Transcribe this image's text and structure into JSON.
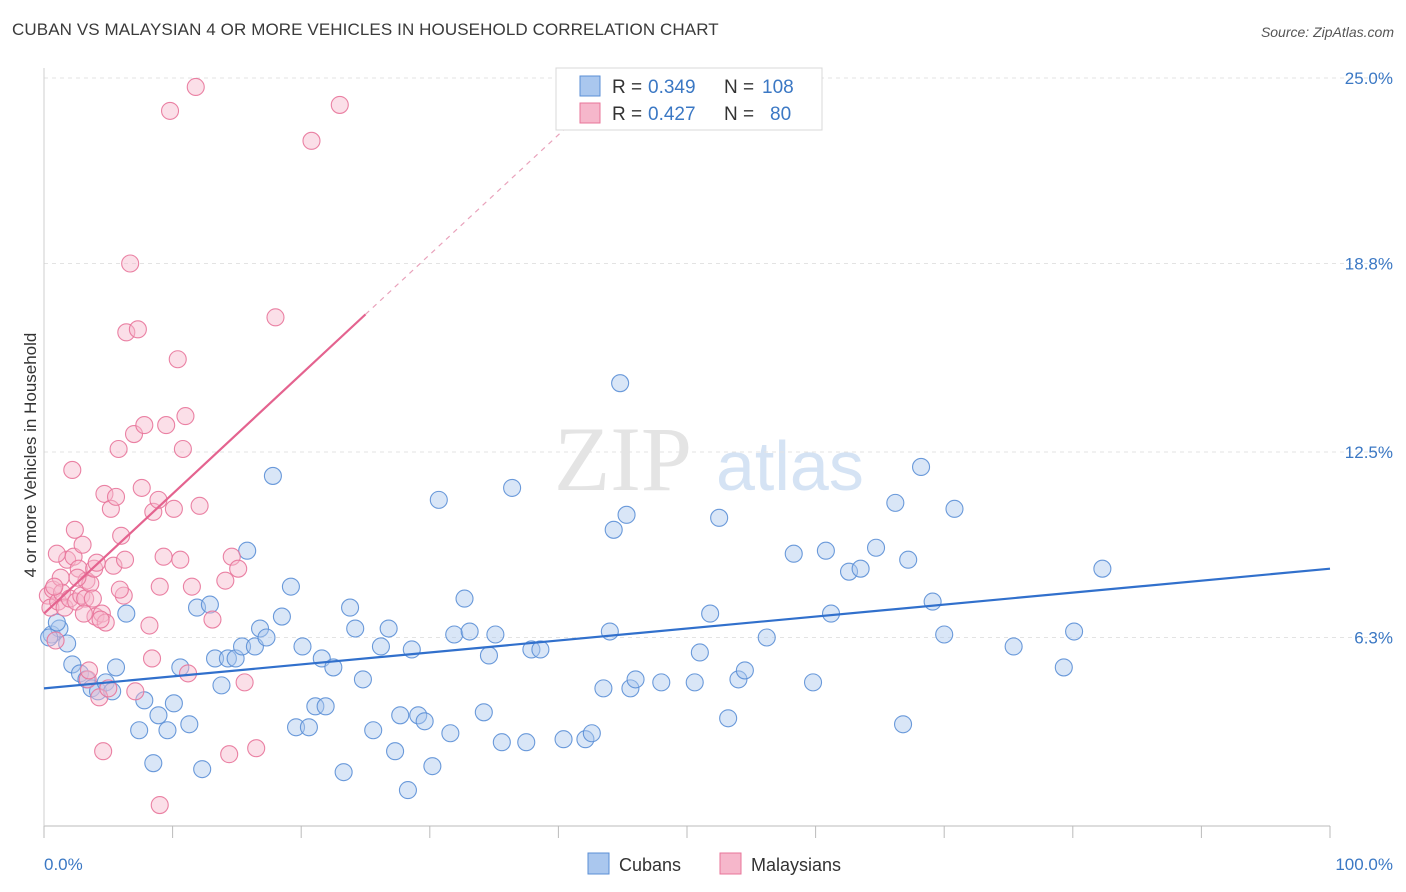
{
  "title": "CUBAN VS MALAYSIAN 4 OR MORE VEHICLES IN HOUSEHOLD CORRELATION CHART",
  "source": "Source: ZipAtlas.com",
  "watermark": {
    "zip": "ZIP",
    "atlas": "atlas"
  },
  "colors": {
    "cubans": "#5b8fd6",
    "cubans_fill": "#aac7ee",
    "malaysians": "#e8749a",
    "malaysians_fill": "#f6b7cb",
    "tick": "#3b78c4",
    "grid": "#e3e3e3"
  },
  "legend": {
    "rows": [
      {
        "r_label": "R = ",
        "r_value": "0.349",
        "n_label": "N = ",
        "n_value": "108"
      },
      {
        "r_label": "R = ",
        "r_value": "0.427",
        "n_label": "N = ",
        "n_value": "80"
      }
    ]
  },
  "chart_data": {
    "type": "scatter",
    "title": "CUBAN VS MALAYSIAN 4 OR MORE VEHICLES IN HOUSEHOLD CORRELATION CHART",
    "xlabel": "",
    "ylabel": "4 or more Vehicles in Household",
    "xlim": [
      0,
      100
    ],
    "ylim": [
      0,
      25.0
    ],
    "x_tick_labels": [
      "0.0%",
      "100.0%"
    ],
    "y_ticks": [
      6.3,
      12.5,
      18.8,
      25.0
    ],
    "y_tick_labels": [
      "6.3%",
      "12.5%",
      "18.8%",
      "25.0%"
    ],
    "grid": true,
    "legend_position": "top-center",
    "series": [
      {
        "name": "Cubans",
        "r": 0.349,
        "n": 108,
        "trend": {
          "x0": 0,
          "y0": 4.6,
          "x1": 100,
          "y1": 8.6
        },
        "points": [
          [
            0.6,
            6.4
          ],
          [
            1.2,
            6.6
          ],
          [
            1.8,
            6.1
          ],
          [
            2.2,
            5.4
          ],
          [
            2.8,
            5.1
          ],
          [
            3.3,
            4.9
          ],
          [
            3.7,
            4.6
          ],
          [
            4.2,
            4.5
          ],
          [
            4.8,
            4.8
          ],
          [
            5.3,
            4.5
          ],
          [
            5.6,
            5.3
          ],
          [
            6.4,
            7.1
          ],
          [
            7.4,
            3.2
          ],
          [
            7.8,
            4.2
          ],
          [
            8.5,
            2.1
          ],
          [
            8.9,
            3.7
          ],
          [
            9.6,
            3.2
          ],
          [
            10.1,
            4.1
          ],
          [
            10.6,
            5.3
          ],
          [
            11.3,
            3.4
          ],
          [
            11.9,
            7.3
          ],
          [
            12.3,
            1.9
          ],
          [
            12.9,
            7.4
          ],
          [
            13.3,
            5.6
          ],
          [
            13.8,
            4.7
          ],
          [
            14.3,
            5.6
          ],
          [
            14.9,
            5.6
          ],
          [
            15.4,
            6.0
          ],
          [
            15.8,
            9.2
          ],
          [
            16.4,
            6.0
          ],
          [
            16.8,
            6.6
          ],
          [
            17.3,
            6.3
          ],
          [
            17.8,
            11.7
          ],
          [
            18.5,
            7.0
          ],
          [
            19.2,
            8.0
          ],
          [
            19.6,
            3.3
          ],
          [
            20.1,
            6.0
          ],
          [
            20.6,
            3.3
          ],
          [
            21.1,
            4.0
          ],
          [
            21.6,
            5.6
          ],
          [
            21.9,
            4.0
          ],
          [
            22.5,
            5.3
          ],
          [
            23.3,
            1.8
          ],
          [
            23.8,
            7.3
          ],
          [
            24.2,
            6.6
          ],
          [
            24.8,
            4.9
          ],
          [
            25.6,
            3.2
          ],
          [
            26.2,
            6.0
          ],
          [
            26.8,
            6.6
          ],
          [
            27.3,
            2.5
          ],
          [
            27.7,
            3.7
          ],
          [
            28.3,
            1.2
          ],
          [
            28.6,
            5.9
          ],
          [
            29.1,
            3.7
          ],
          [
            29.6,
            3.5
          ],
          [
            30.2,
            2.0
          ],
          [
            30.7,
            10.9
          ],
          [
            31.6,
            3.1
          ],
          [
            31.9,
            6.4
          ],
          [
            32.7,
            7.6
          ],
          [
            33.1,
            6.5
          ],
          [
            34.2,
            3.8
          ],
          [
            34.6,
            5.7
          ],
          [
            35.1,
            6.4
          ],
          [
            35.6,
            2.8
          ],
          [
            36.4,
            11.3
          ],
          [
            37.5,
            2.8
          ],
          [
            37.9,
            5.9
          ],
          [
            38.6,
            5.9
          ],
          [
            40.4,
            2.9
          ],
          [
            42.1,
            2.9
          ],
          [
            42.6,
            3.1
          ],
          [
            43.5,
            4.6
          ],
          [
            44.0,
            6.5
          ],
          [
            44.3,
            9.9
          ],
          [
            44.8,
            14.8
          ],
          [
            45.3,
            10.4
          ],
          [
            45.6,
            4.6
          ],
          [
            46.0,
            4.9
          ],
          [
            48.0,
            4.8
          ],
          [
            50.6,
            4.8
          ],
          [
            51.0,
            5.8
          ],
          [
            51.8,
            7.1
          ],
          [
            52.5,
            10.3
          ],
          [
            53.2,
            3.6
          ],
          [
            54.0,
            4.9
          ],
          [
            54.5,
            5.2
          ],
          [
            56.2,
            6.3
          ],
          [
            58.3,
            9.1
          ],
          [
            59.8,
            4.8
          ],
          [
            60.8,
            9.2
          ],
          [
            61.2,
            7.1
          ],
          [
            62.6,
            8.5
          ],
          [
            63.5,
            8.6
          ],
          [
            64.7,
            9.3
          ],
          [
            66.2,
            10.8
          ],
          [
            66.8,
            3.4
          ],
          [
            67.2,
            8.9
          ],
          [
            68.2,
            12.0
          ],
          [
            69.1,
            7.5
          ],
          [
            70.0,
            6.4
          ],
          [
            70.8,
            10.6
          ],
          [
            75.4,
            6.0
          ],
          [
            79.3,
            5.3
          ],
          [
            80.1,
            6.5
          ],
          [
            82.3,
            8.6
          ],
          [
            1.0,
            6.8
          ],
          [
            0.4,
            6.3
          ]
        ]
      },
      {
        "name": "Malaysians",
        "r": 0.427,
        "n": 80,
        "trend": {
          "x0": 0,
          "y0": 7.1,
          "x1": 25,
          "y1": 17.1
        },
        "points": [
          [
            0.3,
            7.7
          ],
          [
            0.5,
            7.3
          ],
          [
            0.7,
            7.9
          ],
          [
            0.9,
            6.2
          ],
          [
            1.1,
            7.5
          ],
          [
            1.3,
            8.3
          ],
          [
            1.4,
            7.8
          ],
          [
            1.6,
            7.3
          ],
          [
            1.8,
            8.9
          ],
          [
            2.0,
            7.6
          ],
          [
            2.2,
            11.9
          ],
          [
            2.3,
            9.0
          ],
          [
            2.4,
            9.9
          ],
          [
            2.5,
            7.5
          ],
          [
            2.7,
            8.6
          ],
          [
            2.9,
            7.7
          ],
          [
            3.0,
            9.4
          ],
          [
            3.2,
            7.6
          ],
          [
            3.3,
            8.2
          ],
          [
            3.4,
            4.9
          ],
          [
            3.5,
            5.2
          ],
          [
            3.6,
            8.1
          ],
          [
            3.8,
            7.6
          ],
          [
            3.9,
            8.6
          ],
          [
            4.0,
            7.0
          ],
          [
            4.1,
            8.8
          ],
          [
            4.3,
            4.3
          ],
          [
            4.5,
            7.1
          ],
          [
            4.6,
            2.5
          ],
          [
            4.7,
            11.1
          ],
          [
            4.8,
            6.8
          ],
          [
            5.0,
            4.6
          ],
          [
            5.2,
            10.6
          ],
          [
            5.4,
            8.7
          ],
          [
            5.6,
            11.0
          ],
          [
            5.8,
            12.6
          ],
          [
            6.0,
            9.7
          ],
          [
            6.2,
            7.7
          ],
          [
            6.3,
            8.9
          ],
          [
            6.4,
            16.5
          ],
          [
            6.7,
            18.8
          ],
          [
            7.0,
            13.1
          ],
          [
            7.1,
            4.5
          ],
          [
            7.3,
            16.6
          ],
          [
            7.8,
            13.4
          ],
          [
            8.2,
            6.7
          ],
          [
            8.4,
            5.6
          ],
          [
            8.5,
            10.5
          ],
          [
            8.9,
            10.9
          ],
          [
            9.0,
            8.0
          ],
          [
            9.3,
            9.0
          ],
          [
            9.5,
            13.4
          ],
          [
            9.8,
            23.9
          ],
          [
            10.1,
            10.6
          ],
          [
            10.4,
            15.6
          ],
          [
            10.6,
            8.9
          ],
          [
            10.8,
            12.6
          ],
          [
            11.0,
            13.7
          ],
          [
            11.2,
            5.1
          ],
          [
            11.5,
            8.0
          ],
          [
            11.8,
            24.7
          ],
          [
            12.1,
            10.7
          ],
          [
            13.1,
            6.9
          ],
          [
            14.1,
            8.2
          ],
          [
            14.4,
            2.4
          ],
          [
            14.6,
            9.0
          ],
          [
            15.1,
            8.6
          ],
          [
            15.6,
            4.8
          ],
          [
            16.5,
            2.6
          ],
          [
            18.0,
            17.0
          ],
          [
            20.8,
            22.9
          ],
          [
            23.0,
            24.1
          ],
          [
            1.0,
            9.1
          ],
          [
            2.6,
            8.3
          ],
          [
            3.1,
            7.1
          ],
          [
            4.4,
            6.9
          ],
          [
            5.9,
            7.9
          ],
          [
            7.6,
            11.3
          ],
          [
            0.8,
            8.0
          ],
          [
            9.0,
            0.7
          ]
        ]
      }
    ]
  },
  "bottom_legend": {
    "items": [
      "Cubans",
      "Malaysians"
    ]
  }
}
